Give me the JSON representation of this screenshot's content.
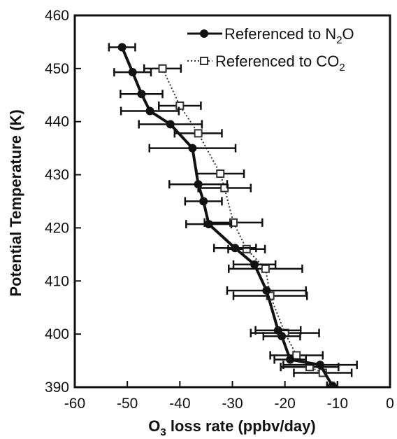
{
  "chart_data": {
    "type": "line",
    "xlabel": {
      "base": "O",
      "sub": "3",
      "rest": " loss rate (ppbv/day)"
    },
    "ylabel": "Potential Temperature (K)",
    "xlim": [
      -60,
      0
    ],
    "ylim": [
      390,
      460
    ],
    "xticks": [
      -60,
      -50,
      -40,
      -30,
      -20,
      -10,
      0
    ],
    "yticks": [
      390,
      400,
      410,
      420,
      430,
      440,
      450,
      460
    ],
    "legend_position": "top-right",
    "grid": false,
    "colors": {
      "n2o": "#111111",
      "co2": "#333333",
      "axis": "#111111"
    },
    "series": [
      {
        "key": "n2o",
        "name": "Referenced to N",
        "name_sub": "2",
        "name_rest": "O",
        "marker": "filled-circle",
        "line": "solid",
        "points": [
          {
            "x": -51,
            "y": 454,
            "xerr": 2.5
          },
          {
            "x": -49,
            "y": 449.3,
            "xerr": 3.5
          },
          {
            "x": -47.3,
            "y": 445.2,
            "xerr": 4
          },
          {
            "x": -45.7,
            "y": 442,
            "xerr": 5.5
          },
          {
            "x": -41.8,
            "y": 439.5,
            "xerr": 6
          },
          {
            "x": -37.6,
            "y": 435,
            "xerr": 8.2
          },
          {
            "x": -36.5,
            "y": 428.2,
            "xerr": 5.5
          },
          {
            "x": -35.5,
            "y": 425,
            "xerr": 3.5
          },
          {
            "x": -34.5,
            "y": 420.7,
            "xerr": 4.3
          },
          {
            "x": -29.5,
            "y": 416.2,
            "xerr": 4
          },
          {
            "x": -25.8,
            "y": 413.1,
            "xerr": 4
          },
          {
            "x": -23.5,
            "y": 408.2,
            "xerr": 7.5
          },
          {
            "x": -21.3,
            "y": 400.7,
            "xerr": 4.3
          },
          {
            "x": -20.6,
            "y": 399.6,
            "xerr": 3.5
          },
          {
            "x": -19,
            "y": 395.2,
            "xerr": 3
          },
          {
            "x": -13.3,
            "y": 394.2,
            "xerr": 7
          },
          {
            "x": -11,
            "y": 390.3,
            "xerr": 1
          }
        ]
      },
      {
        "key": "co2",
        "name": "Referenced to CO",
        "name_sub": "2",
        "name_rest": "",
        "marker": "open-square",
        "line": "dotted",
        "points": [
          {
            "x": -43.3,
            "y": 450,
            "xerr": 3.5
          },
          {
            "x": -40,
            "y": 443,
            "xerr": 4
          },
          {
            "x": -36.5,
            "y": 437.8,
            "xerr": 4.5
          },
          {
            "x": -32.3,
            "y": 430.2,
            "xerr": 4.5
          },
          {
            "x": -31.5,
            "y": 427.5,
            "xerr": 5
          },
          {
            "x": -29.8,
            "y": 421,
            "xerr": 5.5
          },
          {
            "x": -27.3,
            "y": 416,
            "xerr": 3.5
          },
          {
            "x": -23.7,
            "y": 412.3,
            "xerr": 7
          },
          {
            "x": -22.8,
            "y": 407.2,
            "xerr": 7
          },
          {
            "x": -20,
            "y": 400.2,
            "xerr": 6.5
          },
          {
            "x": -17.8,
            "y": 396,
            "xerr": 5
          },
          {
            "x": -15.3,
            "y": 393.8,
            "xerr": 5.5
          },
          {
            "x": -12.8,
            "y": 392.7,
            "xerr": 5.5
          }
        ]
      }
    ]
  }
}
